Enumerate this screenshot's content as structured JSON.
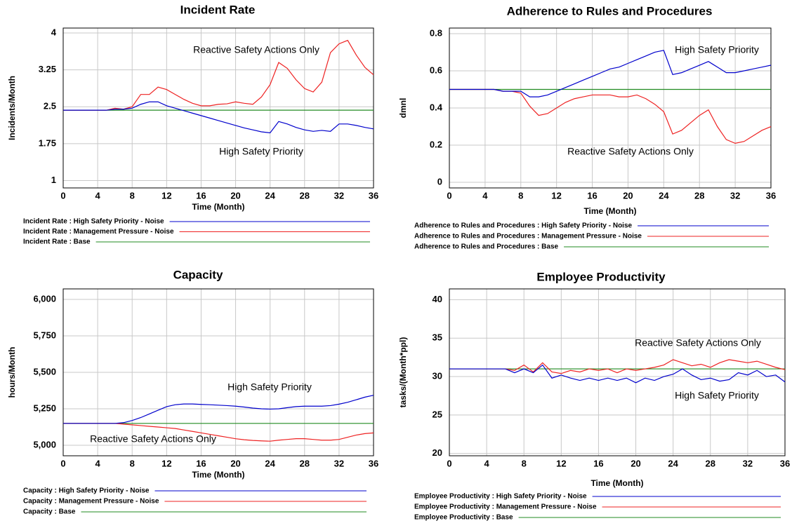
{
  "chart_data": [
    {
      "type": "line",
      "title": "Incident Rate",
      "x_label": "Time (Month)",
      "y_label": "Incidents/Month",
      "x": [
        0,
        1,
        2,
        3,
        4,
        5,
        6,
        7,
        8,
        9,
        10,
        11,
        12,
        13,
        14,
        15,
        16,
        17,
        18,
        19,
        20,
        21,
        22,
        23,
        24,
        25,
        26,
        27,
        28,
        29,
        30,
        31,
        32,
        33,
        34,
        35,
        36
      ],
      "xlim": [
        0,
        36
      ],
      "xticks": [
        0,
        4,
        8,
        12,
        16,
        20,
        24,
        28,
        32,
        36
      ],
      "ylim": [
        0.85,
        4.1
      ],
      "yticks": [
        1,
        1.75,
        2.5,
        3.25,
        4
      ],
      "grid": true,
      "annotations": [
        "Reactive Safety Actions Only",
        "High Safety Priority"
      ],
      "series": [
        {
          "name": "Incident Rate : High Safety Priority - Noise",
          "color": "#0000cc",
          "values": [
            2.43,
            2.43,
            2.43,
            2.43,
            2.43,
            2.43,
            2.45,
            2.45,
            2.47,
            2.55,
            2.6,
            2.6,
            2.52,
            2.47,
            2.42,
            2.37,
            2.32,
            2.27,
            2.22,
            2.17,
            2.12,
            2.07,
            2.03,
            1.99,
            1.97,
            2.2,
            2.15,
            2.08,
            2.03,
            2.0,
            2.02,
            2.0,
            2.15,
            2.15,
            2.12,
            2.08,
            2.05
          ]
        },
        {
          "name": "Incident Rate : Management Pressure - Noise",
          "color": "#ee2222",
          "values": [
            2.43,
            2.43,
            2.43,
            2.43,
            2.43,
            2.43,
            2.47,
            2.45,
            2.5,
            2.75,
            2.75,
            2.9,
            2.85,
            2.75,
            2.65,
            2.57,
            2.52,
            2.52,
            2.55,
            2.56,
            2.6,
            2.57,
            2.55,
            2.7,
            2.95,
            3.4,
            3.28,
            3.05,
            2.87,
            2.8,
            3.0,
            3.6,
            3.78,
            3.85,
            3.55,
            3.3,
            3.15
          ]
        },
        {
          "name": "Incident Rate : Base",
          "color": "#228b22",
          "values": [
            2.43,
            2.43,
            2.43,
            2.43,
            2.43,
            2.43,
            2.43,
            2.43,
            2.43,
            2.43,
            2.43,
            2.43,
            2.43,
            2.43,
            2.43,
            2.43,
            2.43,
            2.43,
            2.43,
            2.43,
            2.43,
            2.43,
            2.43,
            2.43,
            2.43,
            2.43,
            2.43,
            2.43,
            2.43,
            2.43,
            2.43,
            2.43,
            2.43,
            2.43,
            2.43,
            2.43,
            2.43
          ]
        }
      ]
    },
    {
      "type": "line",
      "title": "Adherence to Rules and Procedures",
      "x_label": "Time (Month)",
      "y_label": "dmnl",
      "x": [
        0,
        1,
        2,
        3,
        4,
        5,
        6,
        7,
        8,
        9,
        10,
        11,
        12,
        13,
        14,
        15,
        16,
        17,
        18,
        19,
        20,
        21,
        22,
        23,
        24,
        25,
        26,
        27,
        28,
        29,
        30,
        31,
        32,
        33,
        34,
        35,
        36
      ],
      "xlim": [
        0,
        36
      ],
      "xticks": [
        0,
        4,
        8,
        12,
        16,
        20,
        24,
        28,
        32,
        36
      ],
      "ylim": [
        -0.03,
        0.83
      ],
      "yticks": [
        0,
        0.2,
        0.4,
        0.6,
        0.8
      ],
      "grid": true,
      "annotations": [
        "High Safety Priority",
        "Reactive Safety Actions Only"
      ],
      "series": [
        {
          "name": "Adherence to Rules and Procedures : High Safety Priority - Noise",
          "color": "#0000cc",
          "values": [
            0.5,
            0.5,
            0.5,
            0.5,
            0.5,
            0.5,
            0.49,
            0.49,
            0.49,
            0.46,
            0.46,
            0.47,
            0.49,
            0.51,
            0.53,
            0.55,
            0.57,
            0.59,
            0.61,
            0.62,
            0.64,
            0.66,
            0.68,
            0.7,
            0.71,
            0.58,
            0.59,
            0.61,
            0.63,
            0.65,
            0.62,
            0.59,
            0.59,
            0.6,
            0.61,
            0.62,
            0.63
          ]
        },
        {
          "name": "Adherence to Rules and Procedures : Management Pressure - Noise",
          "color": "#ee2222",
          "values": [
            0.5,
            0.5,
            0.5,
            0.5,
            0.5,
            0.5,
            0.49,
            0.49,
            0.48,
            0.41,
            0.36,
            0.37,
            0.4,
            0.43,
            0.45,
            0.46,
            0.47,
            0.47,
            0.47,
            0.46,
            0.46,
            0.47,
            0.45,
            0.42,
            0.38,
            0.26,
            0.28,
            0.32,
            0.36,
            0.39,
            0.3,
            0.23,
            0.21,
            0.22,
            0.25,
            0.28,
            0.3
          ]
        },
        {
          "name": "Adherence to Rules and Procedures : Base",
          "color": "#228b22",
          "values": [
            0.5,
            0.5,
            0.5,
            0.5,
            0.5,
            0.5,
            0.5,
            0.5,
            0.5,
            0.5,
            0.5,
            0.5,
            0.5,
            0.5,
            0.5,
            0.5,
            0.5,
            0.5,
            0.5,
            0.5,
            0.5,
            0.5,
            0.5,
            0.5,
            0.5,
            0.5,
            0.5,
            0.5,
            0.5,
            0.5,
            0.5,
            0.5,
            0.5,
            0.5,
            0.5,
            0.5,
            0.5
          ]
        }
      ]
    },
    {
      "type": "line",
      "title": "Capacity",
      "x_label": "Time (Month)",
      "y_label": "hours/Month",
      "x": [
        0,
        1,
        2,
        3,
        4,
        5,
        6,
        7,
        8,
        9,
        10,
        11,
        12,
        13,
        14,
        15,
        16,
        17,
        18,
        19,
        20,
        21,
        22,
        23,
        24,
        25,
        26,
        27,
        28,
        29,
        30,
        31,
        32,
        33,
        34,
        35,
        36
      ],
      "xlim": [
        0,
        36
      ],
      "xticks": [
        0,
        4,
        8,
        12,
        16,
        20,
        24,
        28,
        32,
        36
      ],
      "ylim": [
        4928,
        6072
      ],
      "yticks": [
        {
          "value": 5000,
          "label": "5,000"
        },
        {
          "value": 5250,
          "label": "5,250"
        },
        {
          "value": 5500,
          "label": "5,500"
        },
        {
          "value": 5750,
          "label": "5,750"
        },
        {
          "value": 6000,
          "label": "6,000"
        }
      ],
      "grid": true,
      "annotations": [
        "High Safety Priority",
        "Reactive Safety Actions Only"
      ],
      "series": [
        {
          "name": "Capacity : High Safety Priority - Noise",
          "color": "#0000cc",
          "values": [
            5150,
            5150,
            5150,
            5150,
            5150,
            5150,
            5150,
            5155,
            5170,
            5190,
            5215,
            5240,
            5265,
            5278,
            5283,
            5283,
            5280,
            5278,
            5275,
            5272,
            5268,
            5262,
            5255,
            5250,
            5248,
            5250,
            5258,
            5265,
            5268,
            5268,
            5268,
            5272,
            5282,
            5295,
            5312,
            5330,
            5343
          ]
        },
        {
          "name": "Capacity : Management Pressure - Noise",
          "color": "#ee2222",
          "values": [
            5150,
            5150,
            5150,
            5150,
            5150,
            5150,
            5150,
            5145,
            5140,
            5135,
            5130,
            5125,
            5120,
            5115,
            5105,
            5095,
            5085,
            5075,
            5065,
            5055,
            5045,
            5038,
            5033,
            5030,
            5028,
            5035,
            5040,
            5045,
            5045,
            5040,
            5035,
            5035,
            5040,
            5055,
            5070,
            5080,
            5085
          ]
        },
        {
          "name": "Capacity : Base",
          "color": "#228b22",
          "values": [
            5150,
            5150,
            5150,
            5150,
            5150,
            5150,
            5150,
            5150,
            5150,
            5150,
            5150,
            5150,
            5150,
            5150,
            5150,
            5150,
            5150,
            5150,
            5150,
            5150,
            5150,
            5150,
            5150,
            5150,
            5150,
            5150,
            5150,
            5150,
            5150,
            5150,
            5150,
            5150,
            5150,
            5150,
            5150,
            5150,
            5150
          ]
        }
      ]
    },
    {
      "type": "line",
      "title": "Employee Productivity",
      "x_label": "Time (Month)",
      "y_label": "tasks/(Month*ppl)",
      "x": [
        0,
        1,
        2,
        3,
        4,
        5,
        6,
        7,
        8,
        9,
        10,
        11,
        12,
        13,
        14,
        15,
        16,
        17,
        18,
        19,
        20,
        21,
        22,
        23,
        24,
        25,
        26,
        27,
        28,
        29,
        30,
        31,
        32,
        33,
        34,
        35,
        36
      ],
      "xlim": [
        0,
        36
      ],
      "xticks": [
        0,
        4,
        8,
        12,
        16,
        20,
        24,
        28,
        32,
        36
      ],
      "ylim": [
        19.7,
        41.4
      ],
      "yticks": [
        20,
        25,
        30,
        35,
        40
      ],
      "grid": true,
      "annotations": [
        "Reactive Safety Actions Only",
        "High Safety Priority"
      ],
      "series": [
        {
          "name": "Employee Productivity : High Safety Priority - Noise",
          "color": "#0000cc",
          "values": [
            31,
            31,
            31,
            31,
            31,
            31,
            31,
            30.5,
            31,
            30.5,
            31.5,
            29.8,
            30.2,
            29.8,
            29.5,
            29.8,
            29.5,
            29.8,
            29.5,
            29.8,
            29.2,
            29.8,
            29.5,
            30,
            30.3,
            31,
            30.2,
            29.6,
            29.8,
            29.4,
            29.6,
            30.5,
            30.2,
            30.8,
            30,
            30.2,
            29.3
          ]
        },
        {
          "name": "Employee Productivity : Management Pressure - Noise",
          "color": "#ee2222",
          "values": [
            31,
            31,
            31,
            31,
            31,
            31,
            31,
            30.8,
            31.5,
            30.6,
            31.8,
            30.6,
            30.4,
            30.8,
            30.6,
            31,
            30.8,
            31,
            30.5,
            31,
            30.8,
            31,
            31.2,
            31.5,
            32.2,
            31.8,
            31.4,
            31.6,
            31.2,
            31.8,
            32.2,
            32,
            31.8,
            32,
            31.6,
            31.2,
            30.9
          ]
        },
        {
          "name": "Employee Productivity : Base",
          "color": "#228b22",
          "values": [
            31,
            31,
            31,
            31,
            31,
            31,
            31,
            31,
            31,
            31,
            31,
            31,
            31,
            31,
            31,
            31,
            31,
            31,
            31,
            31,
            31,
            31,
            31,
            31,
            31,
            31,
            31,
            31,
            31,
            31,
            31,
            31,
            31,
            31,
            31,
            31,
            31
          ]
        }
      ]
    }
  ]
}
